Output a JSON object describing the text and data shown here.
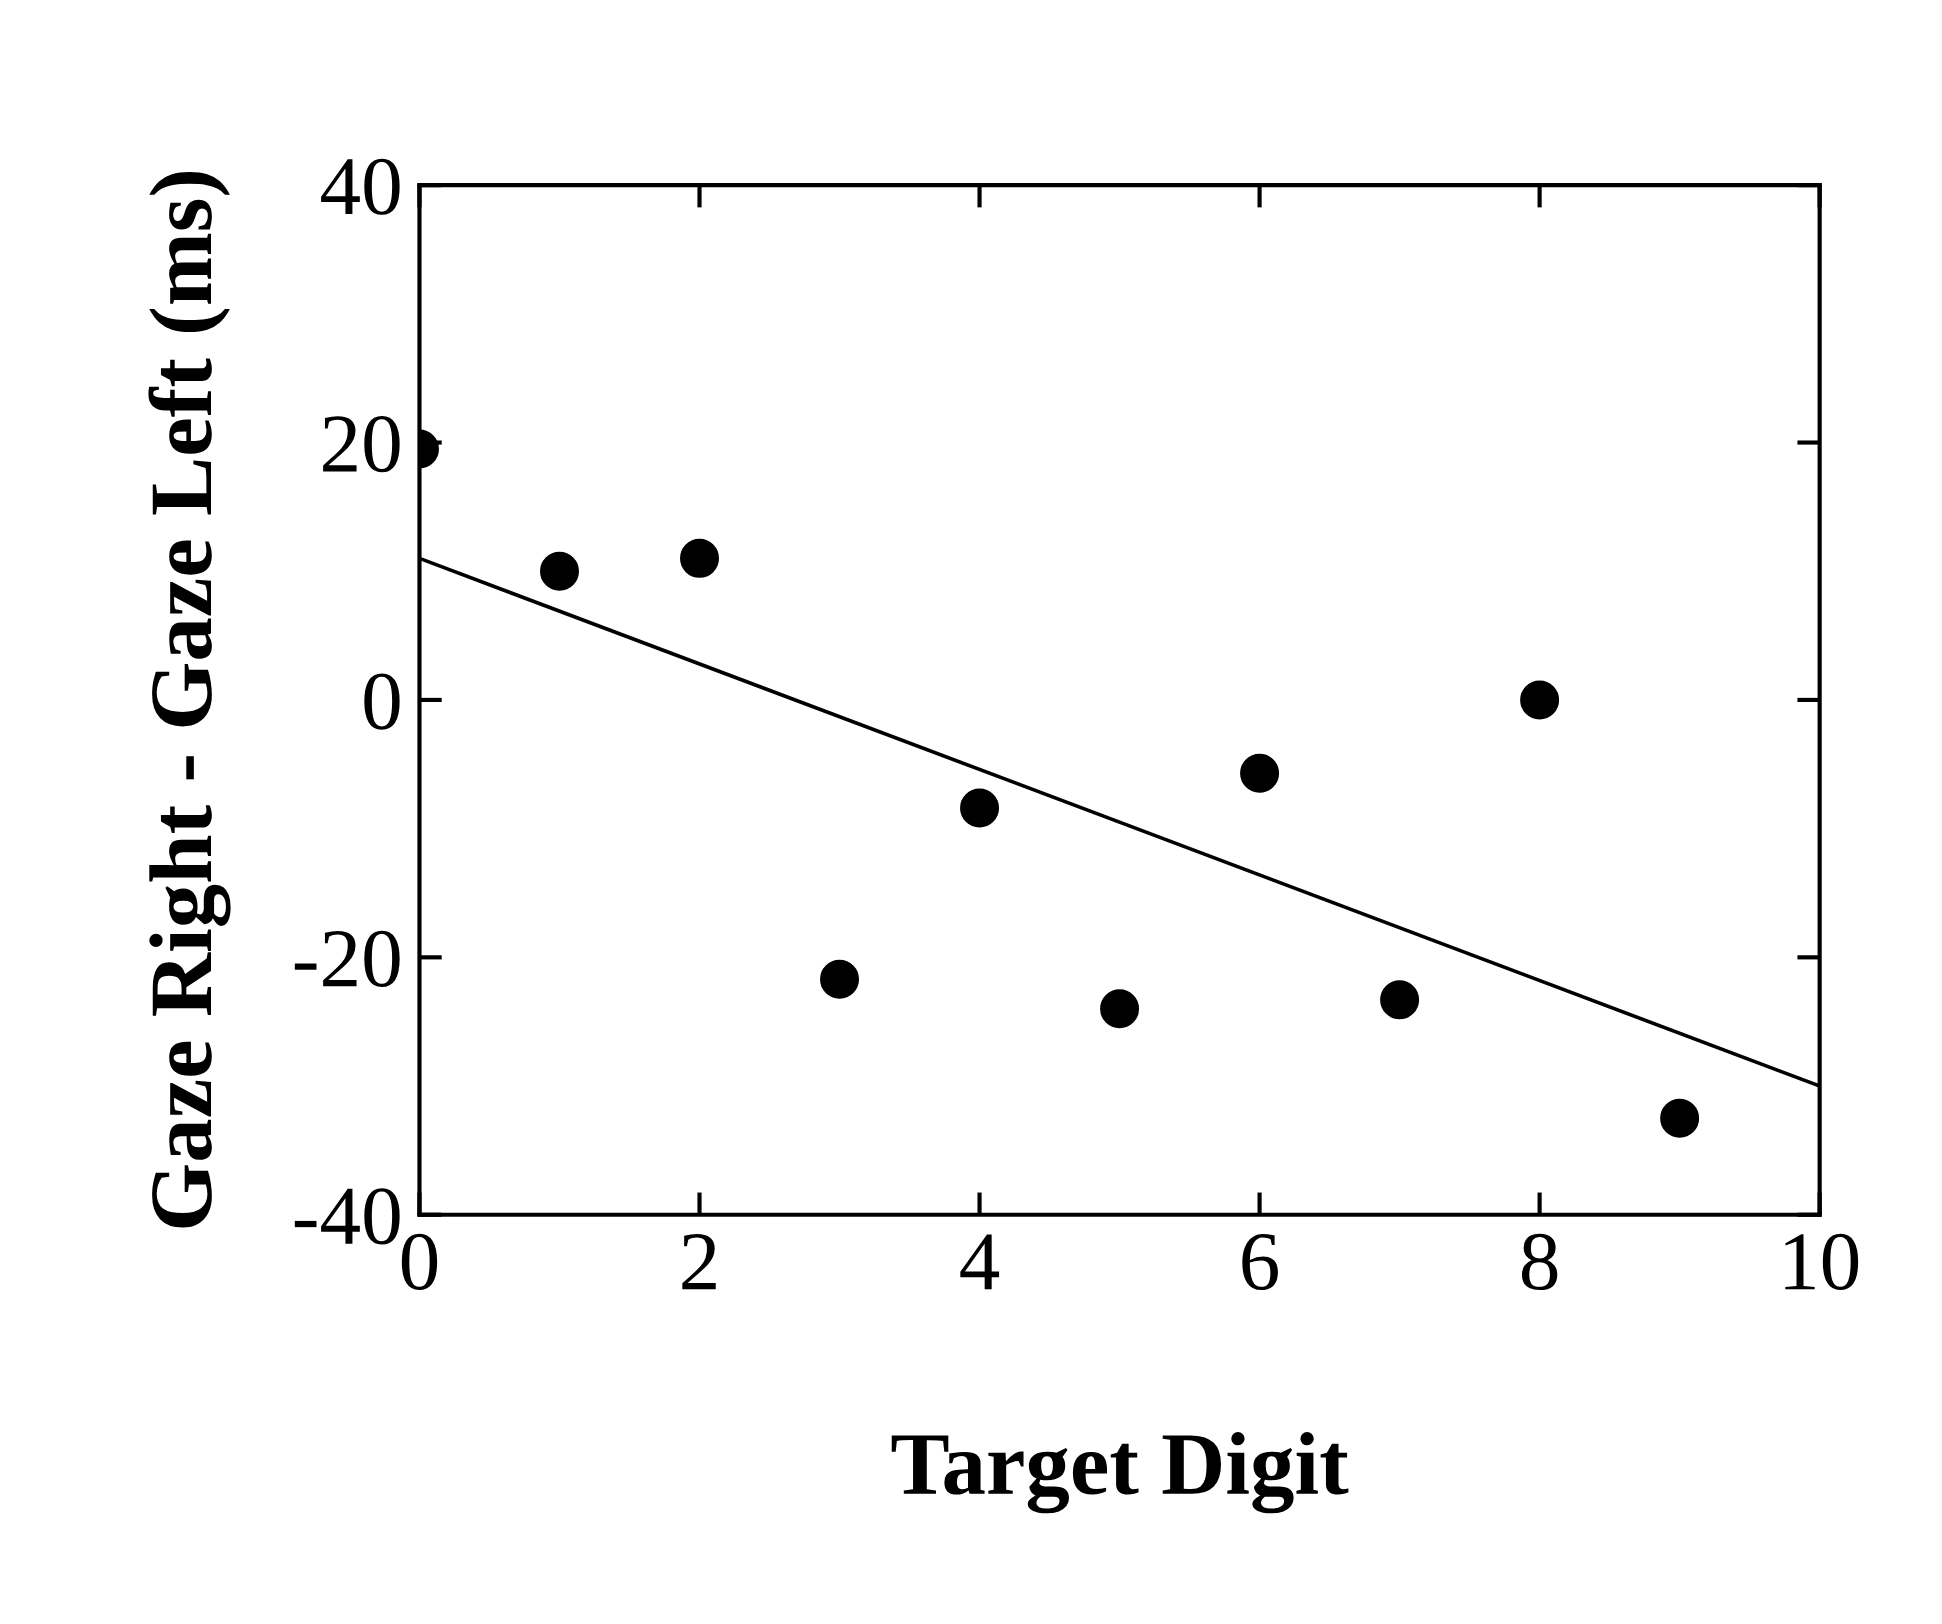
{
  "chart_data": {
    "type": "scatter",
    "xlabel": "Target Digit",
    "ylabel": "Gaze Right - Gaze Left (ms)",
    "xlim": [
      0,
      10
    ],
    "ylim": [
      -40,
      40
    ],
    "xticks": [
      0,
      2,
      4,
      6,
      8,
      10
    ],
    "yticks": [
      {
        "value": -40,
        "label": "-40"
      },
      {
        "value": -20,
        "label": "-20"
      },
      0,
      20,
      40
    ],
    "grid": false,
    "legend": false,
    "marker": "circle",
    "series": [
      {
        "color": "#000000",
        "x": [
          0,
          1,
          2,
          3,
          4,
          5,
          6,
          7,
          8,
          9
        ],
        "values": [
          19.5,
          10,
          11,
          -21.7,
          -8.4,
          -24,
          -5.7,
          -23.3,
          0,
          -32.5
        ]
      },
      {
        "type": "line",
        "color": "#000000",
        "x": [
          0,
          10
        ],
        "values": [
          11,
          -30
        ],
        "marker": "none"
      }
    ]
  }
}
